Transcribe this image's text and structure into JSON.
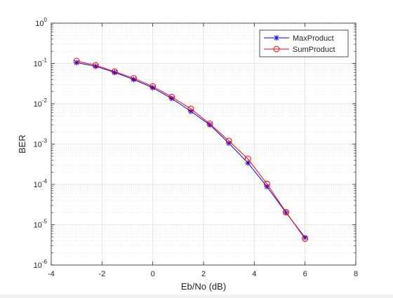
{
  "chart_data": {
    "type": "line",
    "title": "",
    "xlabel": "Eb/No (dB)",
    "ylabel": "BER",
    "xlim": [
      -4,
      8
    ],
    "ylim": [
      1e-06,
      1
    ],
    "yscale": "log",
    "grid": true,
    "minor_grid": true,
    "legend_position": "top-right",
    "x_ticks": [
      -4,
      -2,
      0,
      2,
      4,
      6,
      8
    ],
    "x_tick_labels": [
      "-4",
      "-2",
      "0",
      "2",
      "4",
      "6",
      "8"
    ],
    "y_ticks": [
      {
        "value": 1,
        "base": "10",
        "exp": "0"
      },
      {
        "value": 0.1,
        "base": "10",
        "exp": "-1"
      },
      {
        "value": 0.01,
        "base": "10",
        "exp": "-2"
      },
      {
        "value": 0.001,
        "base": "10",
        "exp": "-3"
      },
      {
        "value": 0.0001,
        "base": "10",
        "exp": "-4"
      },
      {
        "value": 1e-05,
        "base": "10",
        "exp": "-5"
      },
      {
        "value": 1e-06,
        "base": "10",
        "exp": "-6"
      }
    ],
    "x": [
      -3,
      -2.25,
      -1.5,
      -0.75,
      0,
      0.75,
      1.5,
      2.25,
      3,
      3.75,
      4.5,
      5.25,
      6
    ],
    "series": [
      {
        "name": "MaxProduct",
        "color": "#0000ff",
        "marker": "asterisk",
        "values": [
          0.105,
          0.085,
          0.06,
          0.04,
          0.025,
          0.0135,
          0.0065,
          0.003,
          0.00105,
          0.00034,
          8.8e-05,
          2e-05,
          4.8e-06
        ]
      },
      {
        "name": "SumProduct",
        "color": "#ff0000",
        "marker": "circle",
        "values": [
          0.115,
          0.09,
          0.063,
          0.043,
          0.027,
          0.0148,
          0.0075,
          0.0032,
          0.0012,
          0.00043,
          0.000103,
          2.05e-05,
          4.5e-06
        ]
      }
    ]
  }
}
